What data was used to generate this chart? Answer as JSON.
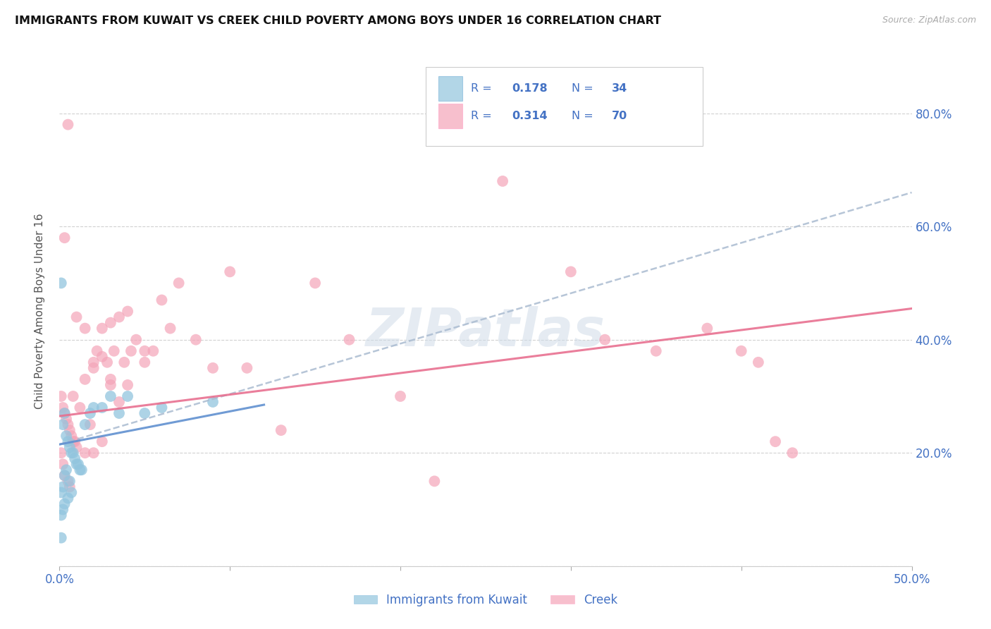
{
  "title": "IMMIGRANTS FROM KUWAIT VS CREEK CHILD POVERTY AMONG BOYS UNDER 16 CORRELATION CHART",
  "source": "Source: ZipAtlas.com",
  "ylabel": "Child Poverty Among Boys Under 16",
  "xlim": [
    0.0,
    0.5
  ],
  "ylim": [
    0.0,
    0.9
  ],
  "xticks": [
    0.0,
    0.1,
    0.2,
    0.3,
    0.4,
    0.5
  ],
  "xtick_labels": [
    "0.0%",
    "",
    "",
    "",
    "",
    "50.0%"
  ],
  "yticks": [
    0.0,
    0.2,
    0.4,
    0.6,
    0.8
  ],
  "ytick_labels_right": [
    "",
    "20.0%",
    "40.0%",
    "60.0%",
    "80.0%"
  ],
  "color_blue": "#92c5de",
  "color_pink": "#f4a4b8",
  "color_blue_line": "#6090d0",
  "color_pink_line": "#e87090",
  "color_dash_line": "#aabbd0",
  "color_axis_text": "#4472c4",
  "color_watermark": "#d0dce8",
  "watermark_text": "ZIPatlas",
  "blue_points_x": [
    0.001,
    0.001,
    0.001,
    0.002,
    0.002,
    0.002,
    0.003,
    0.003,
    0.003,
    0.004,
    0.004,
    0.005,
    0.005,
    0.006,
    0.006,
    0.007,
    0.007,
    0.008,
    0.009,
    0.01,
    0.011,
    0.012,
    0.013,
    0.015,
    0.018,
    0.02,
    0.025,
    0.03,
    0.035,
    0.04,
    0.05,
    0.06,
    0.09,
    0.001
  ],
  "blue_points_y": [
    0.5,
    0.13,
    0.09,
    0.25,
    0.14,
    0.1,
    0.27,
    0.16,
    0.11,
    0.23,
    0.17,
    0.22,
    0.12,
    0.21,
    0.15,
    0.2,
    0.13,
    0.2,
    0.19,
    0.18,
    0.18,
    0.17,
    0.17,
    0.25,
    0.27,
    0.28,
    0.28,
    0.3,
    0.27,
    0.3,
    0.27,
    0.28,
    0.29,
    0.05
  ],
  "pink_points_x": [
    0.001,
    0.001,
    0.002,
    0.002,
    0.003,
    0.003,
    0.004,
    0.005,
    0.005,
    0.006,
    0.006,
    0.007,
    0.008,
    0.009,
    0.01,
    0.012,
    0.015,
    0.015,
    0.018,
    0.02,
    0.02,
    0.022,
    0.025,
    0.025,
    0.028,
    0.03,
    0.03,
    0.032,
    0.035,
    0.038,
    0.04,
    0.042,
    0.045,
    0.05,
    0.055,
    0.06,
    0.065,
    0.07,
    0.08,
    0.09,
    0.1,
    0.11,
    0.13,
    0.15,
    0.17,
    0.2,
    0.003,
    0.005,
    0.008,
    0.01,
    0.015,
    0.02,
    0.025,
    0.03,
    0.035,
    0.04,
    0.05,
    0.22,
    0.26,
    0.3,
    0.32,
    0.35,
    0.38,
    0.4,
    0.41,
    0.42,
    0.43
  ],
  "pink_points_y": [
    0.3,
    0.2,
    0.28,
    0.18,
    0.27,
    0.16,
    0.26,
    0.25,
    0.15,
    0.24,
    0.14,
    0.23,
    0.22,
    0.22,
    0.21,
    0.28,
    0.33,
    0.2,
    0.25,
    0.35,
    0.2,
    0.38,
    0.42,
    0.22,
    0.36,
    0.43,
    0.32,
    0.38,
    0.44,
    0.36,
    0.45,
    0.38,
    0.4,
    0.38,
    0.38,
    0.47,
    0.42,
    0.5,
    0.4,
    0.35,
    0.52,
    0.35,
    0.24,
    0.5,
    0.4,
    0.3,
    0.58,
    0.78,
    0.3,
    0.44,
    0.42,
    0.36,
    0.37,
    0.33,
    0.29,
    0.32,
    0.36,
    0.15,
    0.68,
    0.52,
    0.4,
    0.38,
    0.42,
    0.38,
    0.36,
    0.22,
    0.2
  ],
  "blue_trend_x": [
    0.0,
    0.12
  ],
  "blue_trend_y": [
    0.215,
    0.285
  ],
  "gray_dash_trend_x": [
    0.0,
    0.5
  ],
  "gray_dash_trend_y": [
    0.215,
    0.66
  ],
  "pink_trend_x": [
    0.0,
    0.5
  ],
  "pink_trend_y": [
    0.265,
    0.455
  ],
  "figsize": [
    14.06,
    8.92
  ],
  "dpi": 100
}
